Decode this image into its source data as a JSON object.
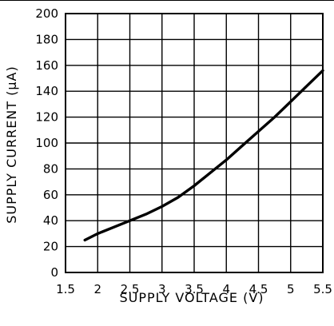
{
  "chart_data": {
    "type": "line",
    "title": "",
    "xlabel": "SUPPLY VOLTAGE (V)",
    "ylabel": "SUPPLY CURRENT (μA)",
    "xlim": [
      1.5,
      5.5
    ],
    "ylim": [
      0,
      200
    ],
    "x_ticks": [
      1.5,
      2,
      2.5,
      3,
      3.5,
      4,
      4.5,
      5,
      5.5
    ],
    "x_tick_labels": [
      "1.5",
      "2",
      "2.5",
      "3",
      "3.5",
      "4",
      "4.5",
      "5",
      "5.5"
    ],
    "y_ticks": [
      0,
      20,
      40,
      60,
      80,
      100,
      120,
      140,
      160,
      180,
      200
    ],
    "y_tick_labels": [
      "0",
      "20",
      "40",
      "60",
      "80",
      "100",
      "120",
      "140",
      "160",
      "180",
      "200"
    ],
    "grid": true,
    "series": [
      {
        "x": [
          1.8,
          2.0,
          2.25,
          2.5,
          2.75,
          3.0,
          3.25,
          3.5,
          3.75,
          4.0,
          4.25,
          4.5,
          4.75,
          5.0,
          5.25,
          5.5
        ],
        "values": [
          25,
          30,
          35,
          40,
          45,
          51,
          58,
          67,
          77,
          87,
          98,
          109,
          120,
          132,
          144,
          156
        ]
      }
    ]
  }
}
